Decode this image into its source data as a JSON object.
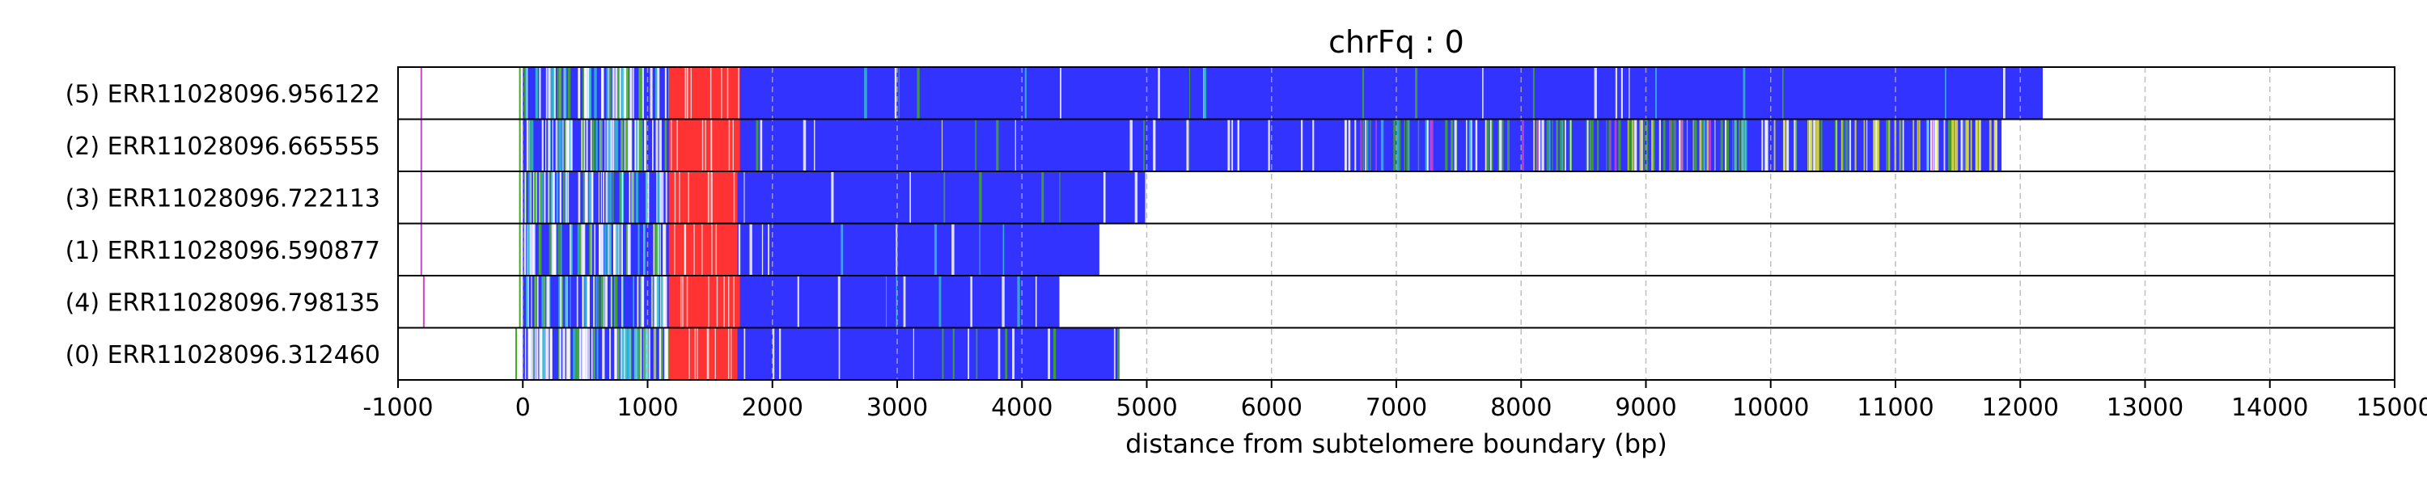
{
  "chart_data": {
    "type": "bar",
    "title": "chrFq : 0",
    "xlabel": "distance from subtelomere boundary (bp)",
    "xlim": [
      -1000,
      15000
    ],
    "xticks": [
      -1000,
      0,
      1000,
      2000,
      3000,
      4000,
      5000,
      6000,
      7000,
      8000,
      9000,
      10000,
      11000,
      12000,
      13000,
      14000,
      15000
    ],
    "grid": "vertical dashed",
    "colors": {
      "repeat": "#3333ff",
      "subtelomere": "#ff3333",
      "variant_green": "#44aa22",
      "variant_yellow": "#dddd33",
      "variant_cyan": "#33bbcc",
      "variant_magenta": "#cc44cc",
      "white": "#ffffff"
    },
    "reads": [
      {
        "label": "(5) ERR11028096.956122",
        "start": 0,
        "end": 12180,
        "subtelomere": [
          1170,
          1740
        ],
        "marks": [
          {
            "x": -820,
            "color": "#cc44cc"
          },
          {
            "x": -30,
            "color": "#44aa22"
          }
        ],
        "variants": [
          {
            "range": [
              0,
              1170
            ],
            "color": "#ffffff",
            "count": 40
          },
          {
            "range": [
              0,
              1170
            ],
            "color": "#33bbcc",
            "count": 14
          },
          {
            "range": [
              0,
              1170
            ],
            "color": "#44aa22",
            "count": 10
          },
          {
            "range": [
              1740,
              12180
            ],
            "color": "#ffffff",
            "count": 10
          },
          {
            "range": [
              1740,
              12180
            ],
            "color": "#44aa22",
            "count": 8
          },
          {
            "range": [
              1740,
              12180
            ],
            "color": "#33bbcc",
            "count": 6
          }
        ]
      },
      {
        "label": "(2) ERR11028096.665555",
        "start": 0,
        "end": 11850,
        "subtelomere": [
          1170,
          1740
        ],
        "marks": [
          {
            "x": -820,
            "color": "#cc44cc"
          },
          {
            "x": -30,
            "color": "#44aa22"
          }
        ],
        "variants": [
          {
            "range": [
              0,
              1170
            ],
            "color": "#ffffff",
            "count": 40
          },
          {
            "range": [
              0,
              1170
            ],
            "color": "#33bbcc",
            "count": 14
          },
          {
            "range": [
              0,
              1170
            ],
            "color": "#44aa22",
            "count": 10
          },
          {
            "range": [
              1740,
              6700
            ],
            "color": "#ffffff",
            "count": 18
          },
          {
            "range": [
              1740,
              6700
            ],
            "color": "#44aa22",
            "count": 5
          },
          {
            "range": [
              6700,
              11850
            ],
            "color": "#44aa22",
            "count": 80
          },
          {
            "range": [
              6700,
              11850
            ],
            "color": "#ffffff",
            "count": 50
          },
          {
            "range": [
              8600,
              11850
            ],
            "color": "#dddd33",
            "count": 40
          },
          {
            "range": [
              6700,
              11850
            ],
            "color": "#cc44cc",
            "count": 14
          },
          {
            "range": [
              6700,
              11850
            ],
            "color": "#33bbcc",
            "count": 14
          }
        ]
      },
      {
        "label": "(3) ERR11028096.722113",
        "start": 0,
        "end": 5000,
        "subtelomere": [
          1170,
          1720
        ],
        "marks": [
          {
            "x": -820,
            "color": "#cc44cc"
          },
          {
            "x": -30,
            "color": "#44aa22"
          }
        ],
        "variants": [
          {
            "range": [
              0,
              1170
            ],
            "color": "#ffffff",
            "count": 40
          },
          {
            "range": [
              0,
              1170
            ],
            "color": "#33bbcc",
            "count": 14
          },
          {
            "range": [
              0,
              1170
            ],
            "color": "#44aa22",
            "count": 10
          },
          {
            "range": [
              1720,
              5000
            ],
            "color": "#ffffff",
            "count": 6
          },
          {
            "range": [
              1720,
              5000
            ],
            "color": "#44aa22",
            "count": 4
          }
        ]
      },
      {
        "label": "(1) ERR11028096.590877",
        "start": 0,
        "end": 4620,
        "subtelomere": [
          1170,
          1720
        ],
        "marks": [
          {
            "x": -820,
            "color": "#cc44cc"
          },
          {
            "x": -30,
            "color": "#44aa22"
          }
        ],
        "variants": [
          {
            "range": [
              0,
              1170
            ],
            "color": "#ffffff",
            "count": 40
          },
          {
            "range": [
              0,
              1170
            ],
            "color": "#33bbcc",
            "count": 14
          },
          {
            "range": [
              0,
              1170
            ],
            "color": "#44aa22",
            "count": 10
          },
          {
            "range": [
              1720,
              4620
            ],
            "color": "#ffffff",
            "count": 6
          },
          {
            "range": [
              1720,
              4620
            ],
            "color": "#33bbcc",
            "count": 4
          }
        ]
      },
      {
        "label": "(4) ERR11028096.798135",
        "start": 0,
        "end": 4300,
        "subtelomere": [
          1170,
          1740
        ],
        "marks": [
          {
            "x": -800,
            "color": "#cc44cc"
          },
          {
            "x": -30,
            "color": "#44aa22"
          }
        ],
        "variants": [
          {
            "range": [
              0,
              1170
            ],
            "color": "#ffffff",
            "count": 40
          },
          {
            "range": [
              0,
              1170
            ],
            "color": "#33bbcc",
            "count": 14
          },
          {
            "range": [
              0,
              1170
            ],
            "color": "#44aa22",
            "count": 10
          },
          {
            "range": [
              1740,
              4300
            ],
            "color": "#ffffff",
            "count": 6
          },
          {
            "range": [
              1740,
              4300
            ],
            "color": "#33bbcc",
            "count": 4
          }
        ]
      },
      {
        "label": "(0) ERR11028096.312460",
        "start": 0,
        "end": 4780,
        "subtelomere": [
          1170,
          1720
        ],
        "marks": [
          {
            "x": -60,
            "color": "#44aa22"
          }
        ],
        "variants": [
          {
            "range": [
              0,
              1170
            ],
            "color": "#ffffff",
            "count": 70
          },
          {
            "range": [
              0,
              1170
            ],
            "color": "#33bbcc",
            "count": 16
          },
          {
            "range": [
              0,
              1170
            ],
            "color": "#44aa22",
            "count": 12
          },
          {
            "range": [
              1720,
              4780
            ],
            "color": "#ffffff",
            "count": 10
          },
          {
            "range": [
              1720,
              4780
            ],
            "color": "#44aa22",
            "count": 6
          }
        ]
      }
    ]
  }
}
